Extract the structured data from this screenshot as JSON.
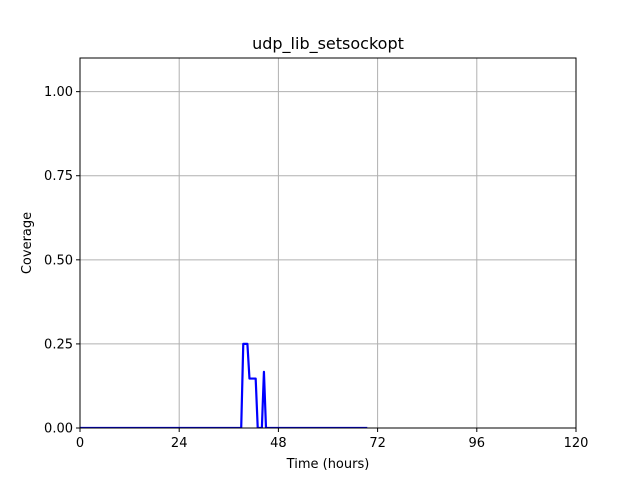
{
  "chart_data": {
    "type": "line",
    "title": "udp_lib_setsockopt",
    "xlabel": "Time (hours)",
    "ylabel": "Coverage",
    "xlim": [
      0,
      120
    ],
    "ylim": [
      0,
      1.1
    ],
    "xticks": [
      0,
      24,
      48,
      72,
      96,
      120
    ],
    "xtick_labels": [
      "0",
      "24",
      "48",
      "72",
      "96",
      "120"
    ],
    "yticks": [
      0,
      0.25,
      0.5,
      0.75,
      1.0
    ],
    "ytick_labels": [
      "0.00",
      "0.25",
      "0.50",
      "0.75",
      "1.00"
    ],
    "grid": true,
    "series": [
      {
        "color": "#0000ff",
        "x": [
          0,
          39,
          39.5,
          40.5,
          41,
          42.5,
          43,
          44,
          44.5,
          45,
          69.5
        ],
        "y": [
          0,
          0,
          0.25,
          0.25,
          0.147,
          0.147,
          0,
          0,
          0.167,
          0,
          0
        ]
      }
    ]
  }
}
